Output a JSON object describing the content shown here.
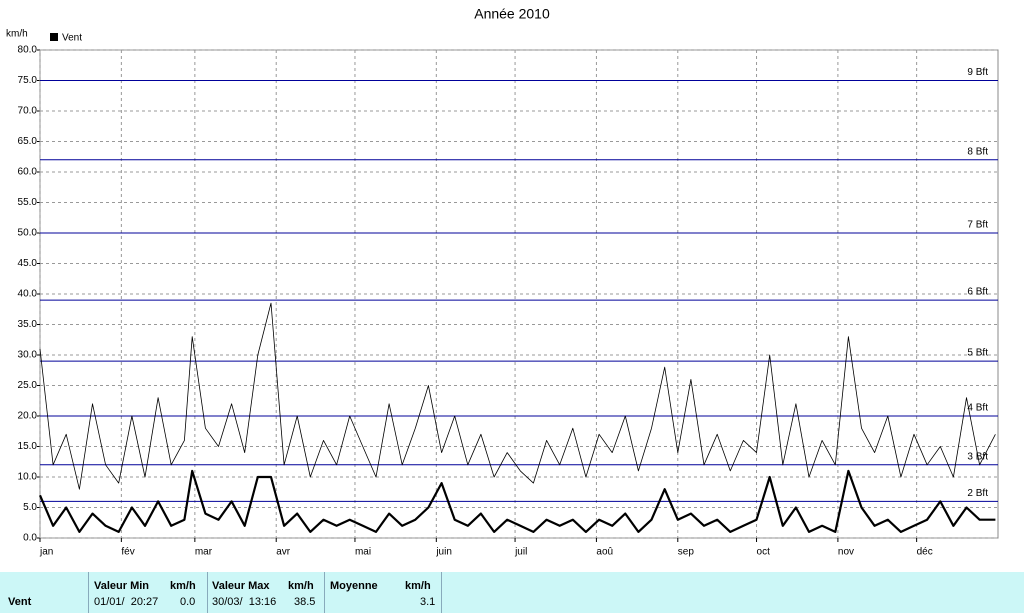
{
  "chart_data": {
    "type": "line",
    "title": "Année 2010",
    "ylabel": "km/h",
    "x": [
      0,
      5,
      10,
      15,
      20,
      25,
      30,
      35,
      40,
      45,
      50,
      55,
      58,
      63,
      68,
      73,
      78,
      83,
      88,
      93,
      98,
      103,
      108,
      113,
      118,
      123,
      128,
      133,
      138,
      143,
      148,
      153,
      158,
      163,
      168,
      173,
      178,
      183,
      188,
      193,
      198,
      203,
      208,
      213,
      218,
      223,
      228,
      233,
      238,
      243,
      248,
      253,
      258,
      263,
      268,
      273,
      278,
      283,
      288,
      293,
      298,
      303,
      308,
      313,
      318,
      323,
      328,
      333,
      338,
      343,
      348,
      353,
      358,
      364
    ],
    "series": [
      {
        "color": "#000000",
        "width": 0.8,
        "values": [
          31,
          12,
          17,
          8,
          22,
          12,
          9,
          20,
          10,
          23,
          12,
          16,
          33,
          18,
          15,
          22,
          14,
          30,
          38.5,
          12,
          20,
          10,
          16,
          12,
          20,
          15,
          10,
          22,
          12,
          18,
          25,
          14,
          20,
          12,
          17,
          10,
          14,
          11,
          9,
          16,
          12,
          18,
          10,
          17,
          14,
          20,
          11,
          18,
          28,
          14,
          26,
          12,
          17,
          11,
          16,
          14,
          30,
          12,
          22,
          10,
          16,
          12,
          33,
          18,
          14,
          20,
          10,
          17,
          12,
          15,
          10,
          23,
          12,
          17
        ]
      },
      {
        "name": "Vent",
        "color": "#000000",
        "width": 2.2,
        "values": [
          7,
          2,
          5,
          1,
          4,
          2,
          1,
          5,
          2,
          6,
          2,
          3,
          11,
          4,
          3,
          6,
          2,
          10,
          10,
          2,
          4,
          1,
          3,
          2,
          3,
          2,
          1,
          4,
          2,
          3,
          5,
          9,
          3,
          2,
          4,
          1,
          3,
          2,
          1,
          3,
          2,
          3,
          1,
          3,
          2,
          4,
          1,
          3,
          8,
          3,
          4,
          2,
          3,
          1,
          2,
          3,
          10,
          2,
          5,
          1,
          2,
          1,
          11,
          5,
          2,
          3,
          1,
          2,
          3,
          6,
          2,
          5,
          3,
          3
        ]
      }
    ],
    "xlim": [
      0,
      365
    ],
    "xticks": [
      {
        "value": 0,
        "label": "jan"
      },
      {
        "value": 31,
        "label": "fév"
      },
      {
        "value": 59,
        "label": "mar"
      },
      {
        "value": 90,
        "label": "avr"
      },
      {
        "value": 120,
        "label": "mai"
      },
      {
        "value": 151,
        "label": "juin"
      },
      {
        "value": 181,
        "label": "juil"
      },
      {
        "value": 212,
        "label": "aoû"
      },
      {
        "value": 243,
        "label": "sep"
      },
      {
        "value": 273,
        "label": "oct"
      },
      {
        "value": 304,
        "label": "nov"
      },
      {
        "value": 334,
        "label": "déc"
      }
    ],
    "ylim": [
      0,
      80
    ],
    "yticks": [
      {
        "value": 0,
        "label": "0.0"
      },
      {
        "value": 5,
        "label": "5.0"
      },
      {
        "value": 10,
        "label": "10.0"
      },
      {
        "value": 15,
        "label": "15.0"
      },
      {
        "value": 20,
        "label": "20.0"
      },
      {
        "value": 25,
        "label": "25.0"
      },
      {
        "value": 30,
        "label": "30.0"
      },
      {
        "value": 35,
        "label": "35.0"
      },
      {
        "value": 40,
        "label": "40.0"
      },
      {
        "value": 45,
        "label": "45.0"
      },
      {
        "value": 50,
        "label": "50.0"
      },
      {
        "value": 55,
        "label": "55.0"
      },
      {
        "value": 60,
        "label": "60.0"
      },
      {
        "value": 65,
        "label": "65.0"
      },
      {
        "value": 70,
        "label": "70.0"
      },
      {
        "value": 75,
        "label": "75.0"
      },
      {
        "value": 80,
        "label": "80.0"
      }
    ],
    "grid": true,
    "reference_color": "#000099",
    "reference_lines": [
      {
        "value": 6,
        "label": "2 Bft"
      },
      {
        "value": 12,
        "label": "3 Bft"
      },
      {
        "value": 20,
        "label": "4 Bft"
      },
      {
        "value": 29,
        "label": "5 Bft"
      },
      {
        "value": 39,
        "label": "6 Bft"
      },
      {
        "value": 50,
        "label": "7 Bft"
      },
      {
        "value": 62,
        "label": "8 Bft"
      },
      {
        "value": 75,
        "label": "9 Bft"
      }
    ]
  },
  "stats": {
    "row_label": "Vent",
    "min": {
      "header": "Valeur Min",
      "unit": "km/h",
      "date": "01/01/  20:27",
      "value": "0.0"
    },
    "max": {
      "header": "Valeur Max",
      "unit": "km/h",
      "date": "30/03/  13:16",
      "value": "38.5"
    },
    "mean": {
      "header": "Moyenne",
      "unit": "km/h",
      "value": "3.1"
    }
  }
}
